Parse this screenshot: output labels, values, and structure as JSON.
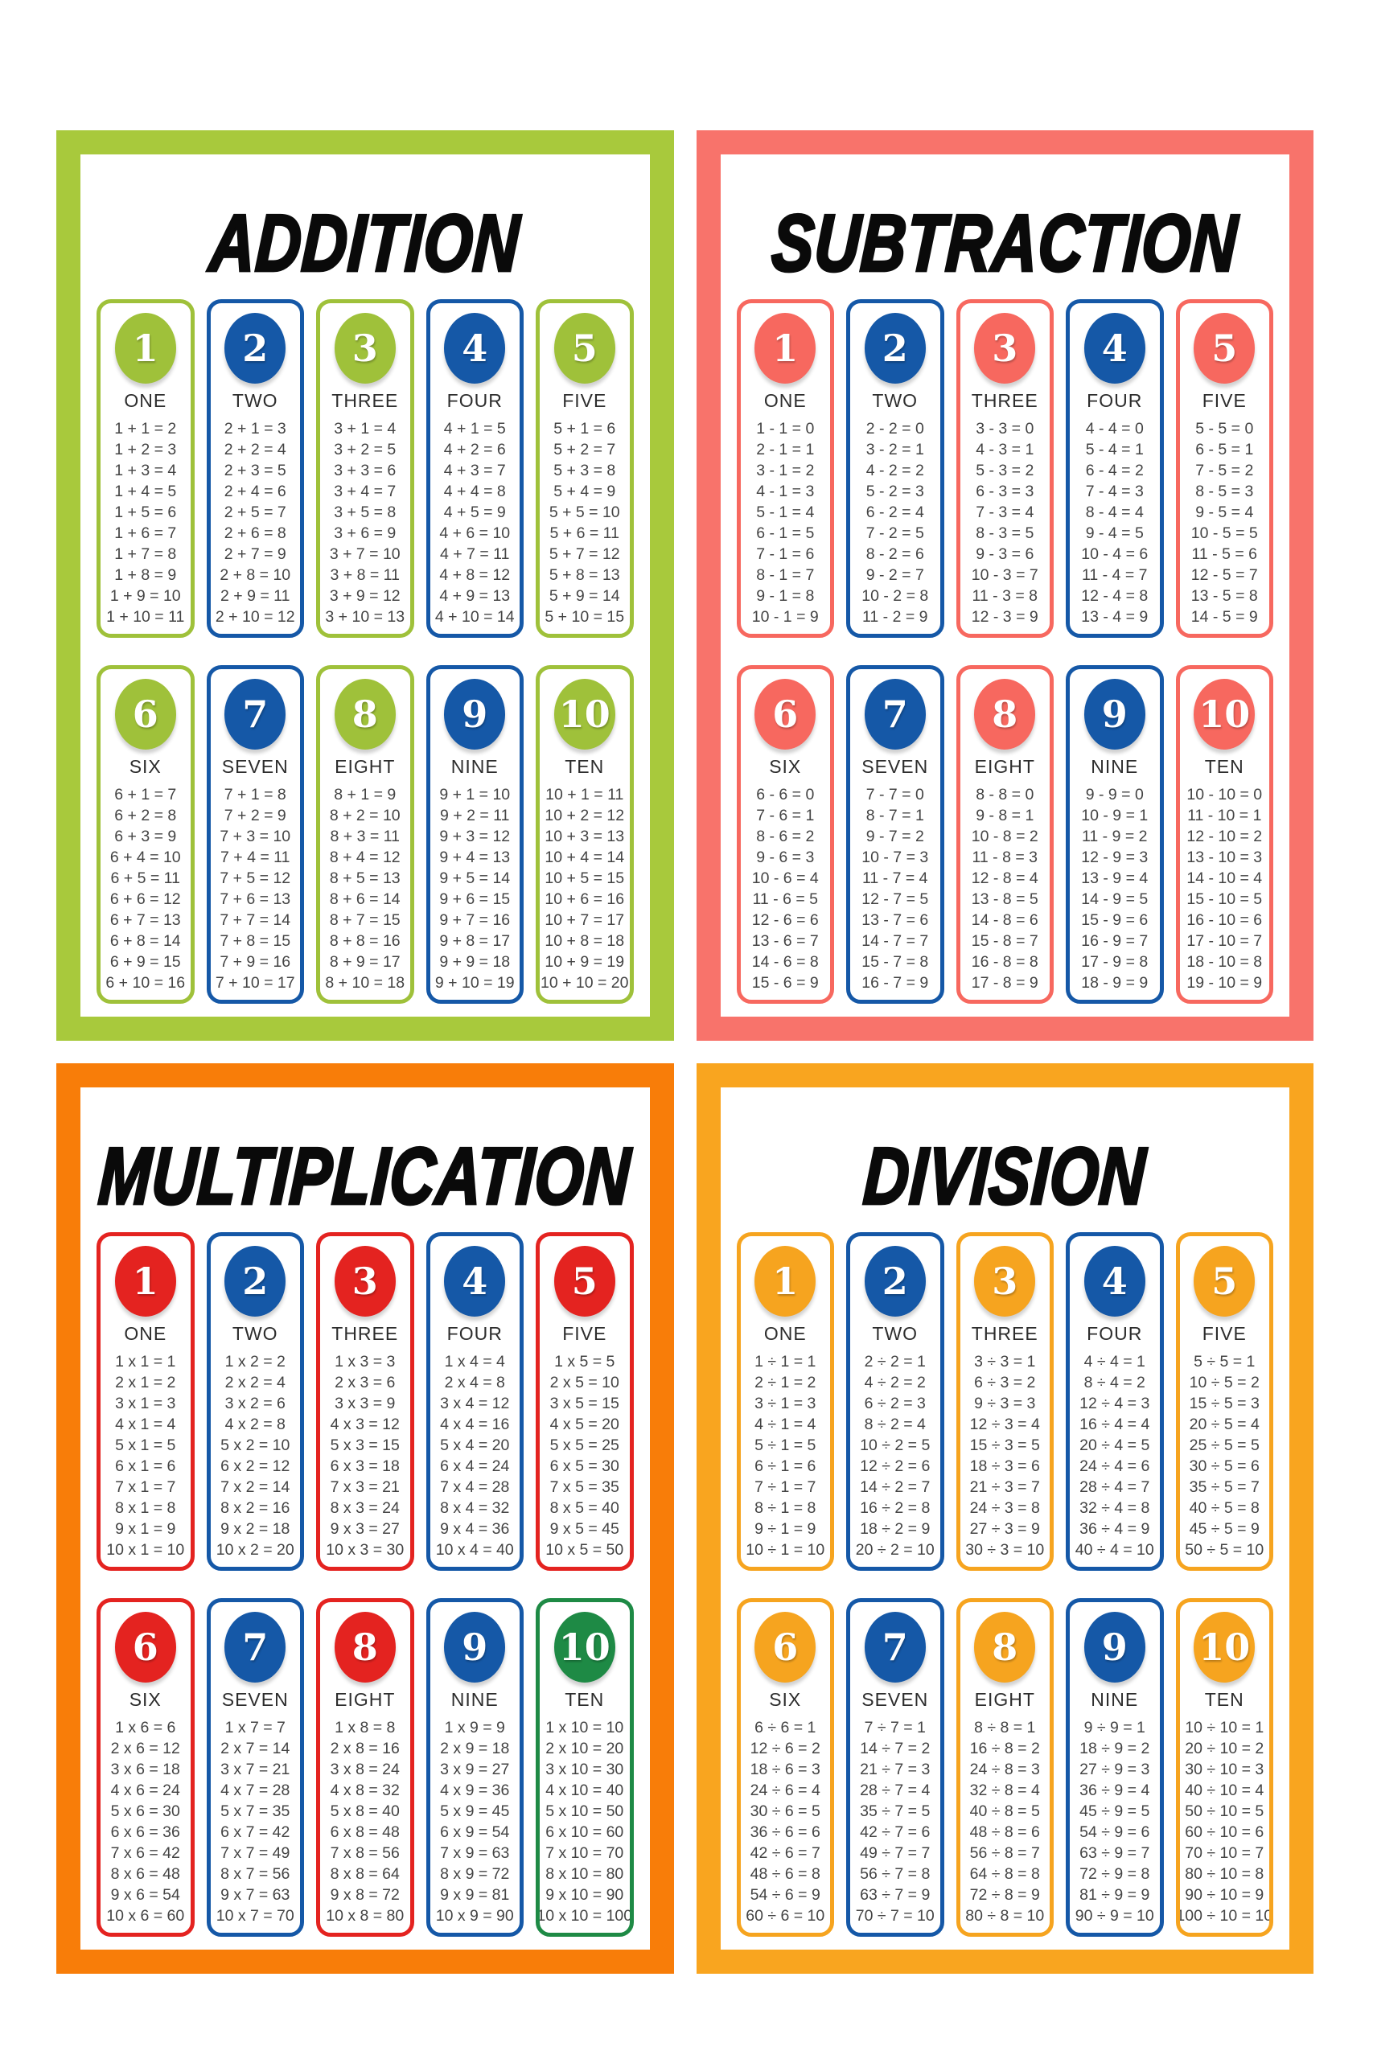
{
  "poster_background": "#ffffff",
  "title_color": "#0a0a0a",
  "equation_text_color": "#444444",
  "blue": "#1558a7",
  "quadrants": [
    {
      "id": "addition",
      "title": "ADDITION",
      "frame_color": "#a8c93c",
      "cards": [
        {
          "number": "1",
          "word": "ONE",
          "color": "#9fc13a",
          "equations": [
            "1 + 1 = 2",
            "1 + 2 = 3",
            "1 + 3 = 4",
            "1 + 4 = 5",
            "1 + 5 = 6",
            "1 + 6 = 7",
            "1 + 7 = 8",
            "1 + 8 = 9",
            "1 + 9 = 10",
            "1 + 10 = 11"
          ]
        },
        {
          "number": "2",
          "word": "TWO",
          "color": "#1558a7",
          "equations": [
            "2 + 1 = 3",
            "2 + 2 = 4",
            "2 + 3 = 5",
            "2 + 4 = 6",
            "2 + 5 = 7",
            "2 + 6 = 8",
            "2 + 7 = 9",
            "2 + 8 = 10",
            "2 + 9 = 11",
            "2 + 10 = 12"
          ]
        },
        {
          "number": "3",
          "word": "THREE",
          "color": "#9fc13a",
          "equations": [
            "3 + 1 = 4",
            "3 + 2 = 5",
            "3 + 3 = 6",
            "3 + 4 = 7",
            "3 + 5 = 8",
            "3 + 6 = 9",
            "3 + 7 = 10",
            "3 + 8 = 11",
            "3 + 9 = 12",
            "3 + 10 = 13"
          ]
        },
        {
          "number": "4",
          "word": "FOUR",
          "color": "#1558a7",
          "equations": [
            "4 + 1 = 5",
            "4 + 2 = 6",
            "4 + 3 = 7",
            "4 + 4 = 8",
            "4 + 5 = 9",
            "4 + 6 = 10",
            "4 + 7 = 11",
            "4 + 8 = 12",
            "4 + 9 = 13",
            "4 + 10 = 14"
          ]
        },
        {
          "number": "5",
          "word": "FIVE",
          "color": "#9fc13a",
          "equations": [
            "5 + 1 = 6",
            "5 + 2 = 7",
            "5 + 3 = 8",
            "5 + 4 = 9",
            "5 + 5 = 10",
            "5 + 6 = 11",
            "5 + 7 = 12",
            "5 + 8 = 13",
            "5 + 9 = 14",
            "5 + 10 = 15"
          ]
        },
        {
          "number": "6",
          "word": "SIX",
          "color": "#9fc13a",
          "equations": [
            "6 + 1 = 7",
            "6 + 2 = 8",
            "6 + 3 = 9",
            "6 + 4 = 10",
            "6 + 5 = 11",
            "6 + 6 = 12",
            "6 + 7 = 13",
            "6 + 8 = 14",
            "6 + 9 = 15",
            "6 + 10 = 16"
          ]
        },
        {
          "number": "7",
          "word": "SEVEN",
          "color": "#1558a7",
          "equations": [
            "7 + 1 = 8",
            "7 + 2 = 9",
            "7 + 3 = 10",
            "7 + 4 = 11",
            "7 + 5 = 12",
            "7 + 6 = 13",
            "7 + 7 = 14",
            "7 + 8 = 15",
            "7 + 9 = 16",
            "7 + 10 = 17"
          ]
        },
        {
          "number": "8",
          "word": "EIGHT",
          "color": "#9fc13a",
          "equations": [
            "8 + 1 = 9",
            "8 + 2 = 10",
            "8 + 3 = 11",
            "8 + 4 = 12",
            "8 + 5 = 13",
            "8 + 6 = 14",
            "8 + 7 = 15",
            "8 + 8 = 16",
            "8 + 9 = 17",
            "8 + 10 = 18"
          ]
        },
        {
          "number": "9",
          "word": "NINE",
          "color": "#1558a7",
          "equations": [
            "9 + 1 = 10",
            "9 + 2 = 11",
            "9 + 3 = 12",
            "9 + 4 = 13",
            "9 + 5 = 14",
            "9 + 6 = 15",
            "9 + 7 = 16",
            "9 + 8 = 17",
            "9 + 9 = 18",
            "9 + 10 = 19"
          ]
        },
        {
          "number": "10",
          "word": "TEN",
          "color": "#9fc13a",
          "equations": [
            "10 + 1 = 11",
            "10 + 2 = 12",
            "10 + 3 = 13",
            "10 + 4 = 14",
            "10 + 5 = 15",
            "10 + 6 = 16",
            "10 + 7 = 17",
            "10 + 8 = 18",
            "10 + 9 = 19",
            "10 + 10 = 20"
          ]
        }
      ]
    },
    {
      "id": "subtraction",
      "title": "SUBTRACTION",
      "frame_color": "#f8736b",
      "cards": [
        {
          "number": "1",
          "word": "ONE",
          "color": "#f7685f",
          "equations": [
            "1 - 1 = 0",
            "2 - 1 = 1",
            "3 - 1 = 2",
            "4 - 1 = 3",
            "5 - 1 = 4",
            "6 - 1 = 5",
            "7 - 1 = 6",
            "8 - 1 = 7",
            "9 - 1 = 8",
            "10 - 1 = 9"
          ]
        },
        {
          "number": "2",
          "word": "TWO",
          "color": "#1558a7",
          "equations": [
            "2 - 2 = 0",
            "3 - 2 = 1",
            "4 - 2 = 2",
            "5 - 2 = 3",
            "6 - 2 = 4",
            "7 - 2 = 5",
            "8 - 2 = 6",
            "9 - 2 = 7",
            "10 - 2 = 8",
            "11 - 2 = 9"
          ]
        },
        {
          "number": "3",
          "word": "THREE",
          "color": "#f7685f",
          "equations": [
            "3 - 3 = 0",
            "4 - 3 = 1",
            "5 - 3 = 2",
            "6 - 3 = 3",
            "7 - 3 = 4",
            "8 - 3 = 5",
            "9 - 3 = 6",
            "10 - 3 = 7",
            "11 - 3 = 8",
            "12 - 3 = 9"
          ]
        },
        {
          "number": "4",
          "word": "FOUR",
          "color": "#1558a7",
          "equations": [
            "4 - 4 = 0",
            "5 - 4 = 1",
            "6 - 4 = 2",
            "7 - 4 = 3",
            "8 - 4 = 4",
            "9 - 4 = 5",
            "10 - 4 = 6",
            "11 - 4 = 7",
            "12 - 4 = 8",
            "13 - 4 = 9"
          ]
        },
        {
          "number": "5",
          "word": "FIVE",
          "color": "#f7685f",
          "equations": [
            "5 - 5 = 0",
            "6 - 5 = 1",
            "7 - 5 = 2",
            "8 - 5 = 3",
            "9 - 5 = 4",
            "10 - 5 = 5",
            "11 - 5 = 6",
            "12 - 5 = 7",
            "13 - 5 = 8",
            "14 - 5 = 9"
          ]
        },
        {
          "number": "6",
          "word": "SIX",
          "color": "#f7685f",
          "equations": [
            "6 - 6 = 0",
            "7 - 6 = 1",
            "8 - 6 = 2",
            "9 - 6 = 3",
            "10 - 6 = 4",
            "11 - 6 = 5",
            "12 - 6 = 6",
            "13 - 6 = 7",
            "14 - 6 = 8",
            "15 - 6 = 9"
          ]
        },
        {
          "number": "7",
          "word": "SEVEN",
          "color": "#1558a7",
          "equations": [
            "7 - 7 = 0",
            "8 - 7 = 1",
            "9 - 7 = 2",
            "10 - 7 = 3",
            "11 - 7 = 4",
            "12 - 7 = 5",
            "13 - 7 = 6",
            "14 - 7 = 7",
            "15 - 7 = 8",
            "16 - 7 = 9"
          ]
        },
        {
          "number": "8",
          "word": "EIGHT",
          "color": "#f7685f",
          "equations": [
            "8 - 8 = 0",
            "9 - 8 = 1",
            "10 - 8 = 2",
            "11 - 8 = 3",
            "12 - 8 = 4",
            "13 - 8 = 5",
            "14 - 8 = 6",
            "15 - 8 = 7",
            "16 - 8 = 8",
            "17 - 8 = 9"
          ]
        },
        {
          "number": "9",
          "word": "NINE",
          "color": "#1558a7",
          "equations": [
            "9 - 9 = 0",
            "10 - 9 = 1",
            "11 - 9 = 2",
            "12 - 9 = 3",
            "13 - 9 = 4",
            "14 - 9 = 5",
            "15 - 9 = 6",
            "16 - 9 = 7",
            "17 - 9 = 8",
            "18 - 9 = 9"
          ]
        },
        {
          "number": "10",
          "word": "TEN",
          "color": "#f7685f",
          "equations": [
            "10 - 10 = 0",
            "11 - 10 = 1",
            "12 - 10 = 2",
            "13 - 10 = 3",
            "14 - 10 = 4",
            "15 - 10 = 5",
            "16 - 10 = 6",
            "17 - 10 = 7",
            "18 - 10 = 8",
            "19 - 10 = 9"
          ]
        }
      ]
    },
    {
      "id": "multiplication",
      "title": "MULTIPLICATION",
      "frame_color": "#f87d09",
      "cards": [
        {
          "number": "1",
          "word": "ONE",
          "color": "#e42320",
          "equations": [
            "1 x 1 = 1",
            "2 x 1 = 2",
            "3 x 1 = 3",
            "4 x 1 = 4",
            "5 x 1 = 5",
            "6 x 1 = 6",
            "7 x 1 = 7",
            "8 x 1 = 8",
            "9 x 1 = 9",
            "10 x 1 = 10"
          ]
        },
        {
          "number": "2",
          "word": "TWO",
          "color": "#1558a7",
          "equations": [
            "1 x 2 = 2",
            "2 x 2 = 4",
            "3 x 2 = 6",
            "4 x 2 = 8",
            "5 x 2 = 10",
            "6 x 2 = 12",
            "7 x 2 = 14",
            "8 x 2 = 16",
            "9 x 2 = 18",
            "10 x 2 = 20"
          ]
        },
        {
          "number": "3",
          "word": "THREE",
          "color": "#e42320",
          "equations": [
            "1 x 3 = 3",
            "2 x 3 = 6",
            "3 x 3 = 9",
            "4 x 3 = 12",
            "5 x 3 = 15",
            "6 x 3 = 18",
            "7 x 3 = 21",
            "8 x 3 = 24",
            "9 x 3 = 27",
            "10 x 3 = 30"
          ]
        },
        {
          "number": "4",
          "word": "FOUR",
          "color": "#1558a7",
          "equations": [
            "1 x 4 = 4",
            "2 x 4 = 8",
            "3 x 4 = 12",
            "4 x 4 = 16",
            "5 x 4 = 20",
            "6 x 4 = 24",
            "7 x 4 = 28",
            "8 x 4 = 32",
            "9 x 4 = 36",
            "10 x 4 = 40"
          ]
        },
        {
          "number": "5",
          "word": "FIVE",
          "color": "#e42320",
          "equations": [
            "1 x 5 = 5",
            "2 x 5 = 10",
            "3 x 5 = 15",
            "4 x 5 = 20",
            "5 x 5 = 25",
            "6 x 5 = 30",
            "7 x 5 = 35",
            "8 x 5 = 40",
            "9 x 5 = 45",
            "10 x 5 = 50"
          ]
        },
        {
          "number": "6",
          "word": "SIX",
          "color": "#e42320",
          "equations": [
            "1 x 6 = 6",
            "2 x 6 = 12",
            "3 x 6 = 18",
            "4 x 6 = 24",
            "5 x 6 = 30",
            "6 x 6 = 36",
            "7 x 6 = 42",
            "8 x 6 = 48",
            "9 x 6 = 54",
            "10 x 6 = 60"
          ]
        },
        {
          "number": "7",
          "word": "SEVEN",
          "color": "#1558a7",
          "equations": [
            "1 x 7 = 7",
            "2 x 7 = 14",
            "3 x 7 = 21",
            "4 x 7 = 28",
            "5 x 7 = 35",
            "6 x 7 = 42",
            "7 x 7 = 49",
            "8 x 7 = 56",
            "9 x 7 = 63",
            "10 x 7 = 70"
          ]
        },
        {
          "number": "8",
          "word": "EIGHT",
          "color": "#e42320",
          "equations": [
            "1 x 8 = 8",
            "2 x 8 = 16",
            "3 x 8 = 24",
            "4 x 8 = 32",
            "5 x 8 = 40",
            "6 x 8 = 48",
            "7 x 8 = 56",
            "8 x 8 = 64",
            "9 x 8 = 72",
            "10 x 8 = 80"
          ]
        },
        {
          "number": "9",
          "word": "NINE",
          "color": "#1558a7",
          "equations": [
            "1 x 9 = 9",
            "2 x 9 = 18",
            "3 x 9 = 27",
            "4 x 9 = 36",
            "5 x 9 = 45",
            "6 x 9 = 54",
            "7 x 9 = 63",
            "8 x 9 = 72",
            "9 x 9 = 81",
            "10 x 9 = 90"
          ]
        },
        {
          "number": "10",
          "word": "TEN",
          "color": "#1e8a45",
          "equations": [
            "1 x 10 = 10",
            "2 x 10 = 20",
            "3 x 10 = 30",
            "4 x 10 = 40",
            "5 x 10 = 50",
            "6 x 10 = 60",
            "7 x 10 = 70",
            "8 x 10 = 80",
            "9 x 10 = 90",
            "10 x 10 = 100"
          ]
        }
      ]
    },
    {
      "id": "division",
      "title": "DIVISION",
      "frame_color": "#f9a51f",
      "cards": [
        {
          "number": "1",
          "word": "ONE",
          "color": "#f6a41f",
          "equations": [
            "1 ÷ 1 = 1",
            "2 ÷ 1 = 2",
            "3 ÷ 1 = 3",
            "4 ÷ 1 = 4",
            "5 ÷ 1 = 5",
            "6 ÷ 1 = 6",
            "7 ÷ 1 = 7",
            "8 ÷ 1 = 8",
            "9 ÷ 1 = 9",
            "10 ÷ 1 = 10"
          ]
        },
        {
          "number": "2",
          "word": "TWO",
          "color": "#1558a7",
          "equations": [
            "2 ÷ 2 = 1",
            "4 ÷ 2 = 2",
            "6 ÷ 2 = 3",
            "8 ÷ 2 = 4",
            "10 ÷ 2 = 5",
            "12 ÷ 2 = 6",
            "14 ÷ 2 = 7",
            "16 ÷ 2 = 8",
            "18 ÷ 2 = 9",
            "20 ÷ 2 = 10"
          ]
        },
        {
          "number": "3",
          "word": "THREE",
          "color": "#f6a41f",
          "equations": [
            "3 ÷ 3 = 1",
            "6 ÷ 3 = 2",
            "9 ÷ 3 = 3",
            "12 ÷ 3 = 4",
            "15 ÷ 3 = 5",
            "18 ÷ 3 = 6",
            "21 ÷ 3 = 7",
            "24 ÷ 3 = 8",
            "27 ÷ 3 = 9",
            "30 ÷ 3 = 10"
          ]
        },
        {
          "number": "4",
          "word": "FOUR",
          "color": "#1558a7",
          "equations": [
            "4 ÷ 4 = 1",
            "8 ÷ 4 = 2",
            "12 ÷ 4 = 3",
            "16 ÷ 4 = 4",
            "20 ÷ 4 = 5",
            "24 ÷ 4 = 6",
            "28 ÷ 4 = 7",
            "32 ÷ 4 = 8",
            "36 ÷ 4 = 9",
            "40 ÷ 4 = 10"
          ]
        },
        {
          "number": "5",
          "word": "FIVE",
          "color": "#f6a41f",
          "equations": [
            "5 ÷ 5 = 1",
            "10 ÷ 5 = 2",
            "15 ÷ 5 = 3",
            "20 ÷ 5 = 4",
            "25 ÷ 5 = 5",
            "30 ÷ 5 = 6",
            "35 ÷ 5 = 7",
            "40 ÷ 5 = 8",
            "45 ÷ 5 = 9",
            "50 ÷ 5 = 10"
          ]
        },
        {
          "number": "6",
          "word": "SIX",
          "color": "#f6a41f",
          "equations": [
            "6 ÷ 6 = 1",
            "12 ÷ 6 = 2",
            "18 ÷ 6 = 3",
            "24 ÷ 6 = 4",
            "30 ÷ 6 = 5",
            "36 ÷ 6 = 6",
            "42 ÷ 6 = 7",
            "48 ÷ 6 = 8",
            "54 ÷ 6 = 9",
            "60 ÷ 6 = 10"
          ]
        },
        {
          "number": "7",
          "word": "SEVEN",
          "color": "#1558a7",
          "equations": [
            "7 ÷ 7 = 1",
            "14 ÷ 7 = 2",
            "21 ÷ 7 = 3",
            "28 ÷ 7 = 4",
            "35 ÷ 7 = 5",
            "42 ÷ 7 = 6",
            "49 ÷ 7 = 7",
            "56 ÷ 7 = 8",
            "63 ÷ 7 = 9",
            "70 ÷ 7 = 10"
          ]
        },
        {
          "number": "8",
          "word": "EIGHT",
          "color": "#f6a41f",
          "equations": [
            "8 ÷ 8 = 1",
            "16 ÷ 8 = 2",
            "24 ÷ 8 = 3",
            "32 ÷ 8 = 4",
            "40 ÷ 8 = 5",
            "48 ÷ 8 = 6",
            "56 ÷ 8 = 7",
            "64 ÷ 8 = 8",
            "72 ÷ 8 = 9",
            "80 ÷ 8 = 10"
          ]
        },
        {
          "number": "9",
          "word": "NINE",
          "color": "#1558a7",
          "equations": [
            "9 ÷ 9 = 1",
            "18 ÷ 9 = 2",
            "27 ÷ 9 = 3",
            "36 ÷ 9 = 4",
            "45 ÷ 9 = 5",
            "54 ÷ 9 = 6",
            "63 ÷ 9 = 7",
            "72 ÷ 9 = 8",
            "81 ÷ 9 = 9",
            "90 ÷ 9 = 10"
          ]
        },
        {
          "number": "10",
          "word": "TEN",
          "color": "#f6a41f",
          "equations": [
            "10 ÷ 10 = 1",
            "20 ÷ 10 = 2",
            "30 ÷ 10 = 3",
            "40 ÷ 10 = 4",
            "50 ÷ 10 = 5",
            "60 ÷ 10 = 6",
            "70 ÷ 10 = 7",
            "80 ÷ 10 = 8",
            "90 ÷ 10 = 9",
            "100 ÷ 10 = 10"
          ]
        }
      ]
    }
  ]
}
